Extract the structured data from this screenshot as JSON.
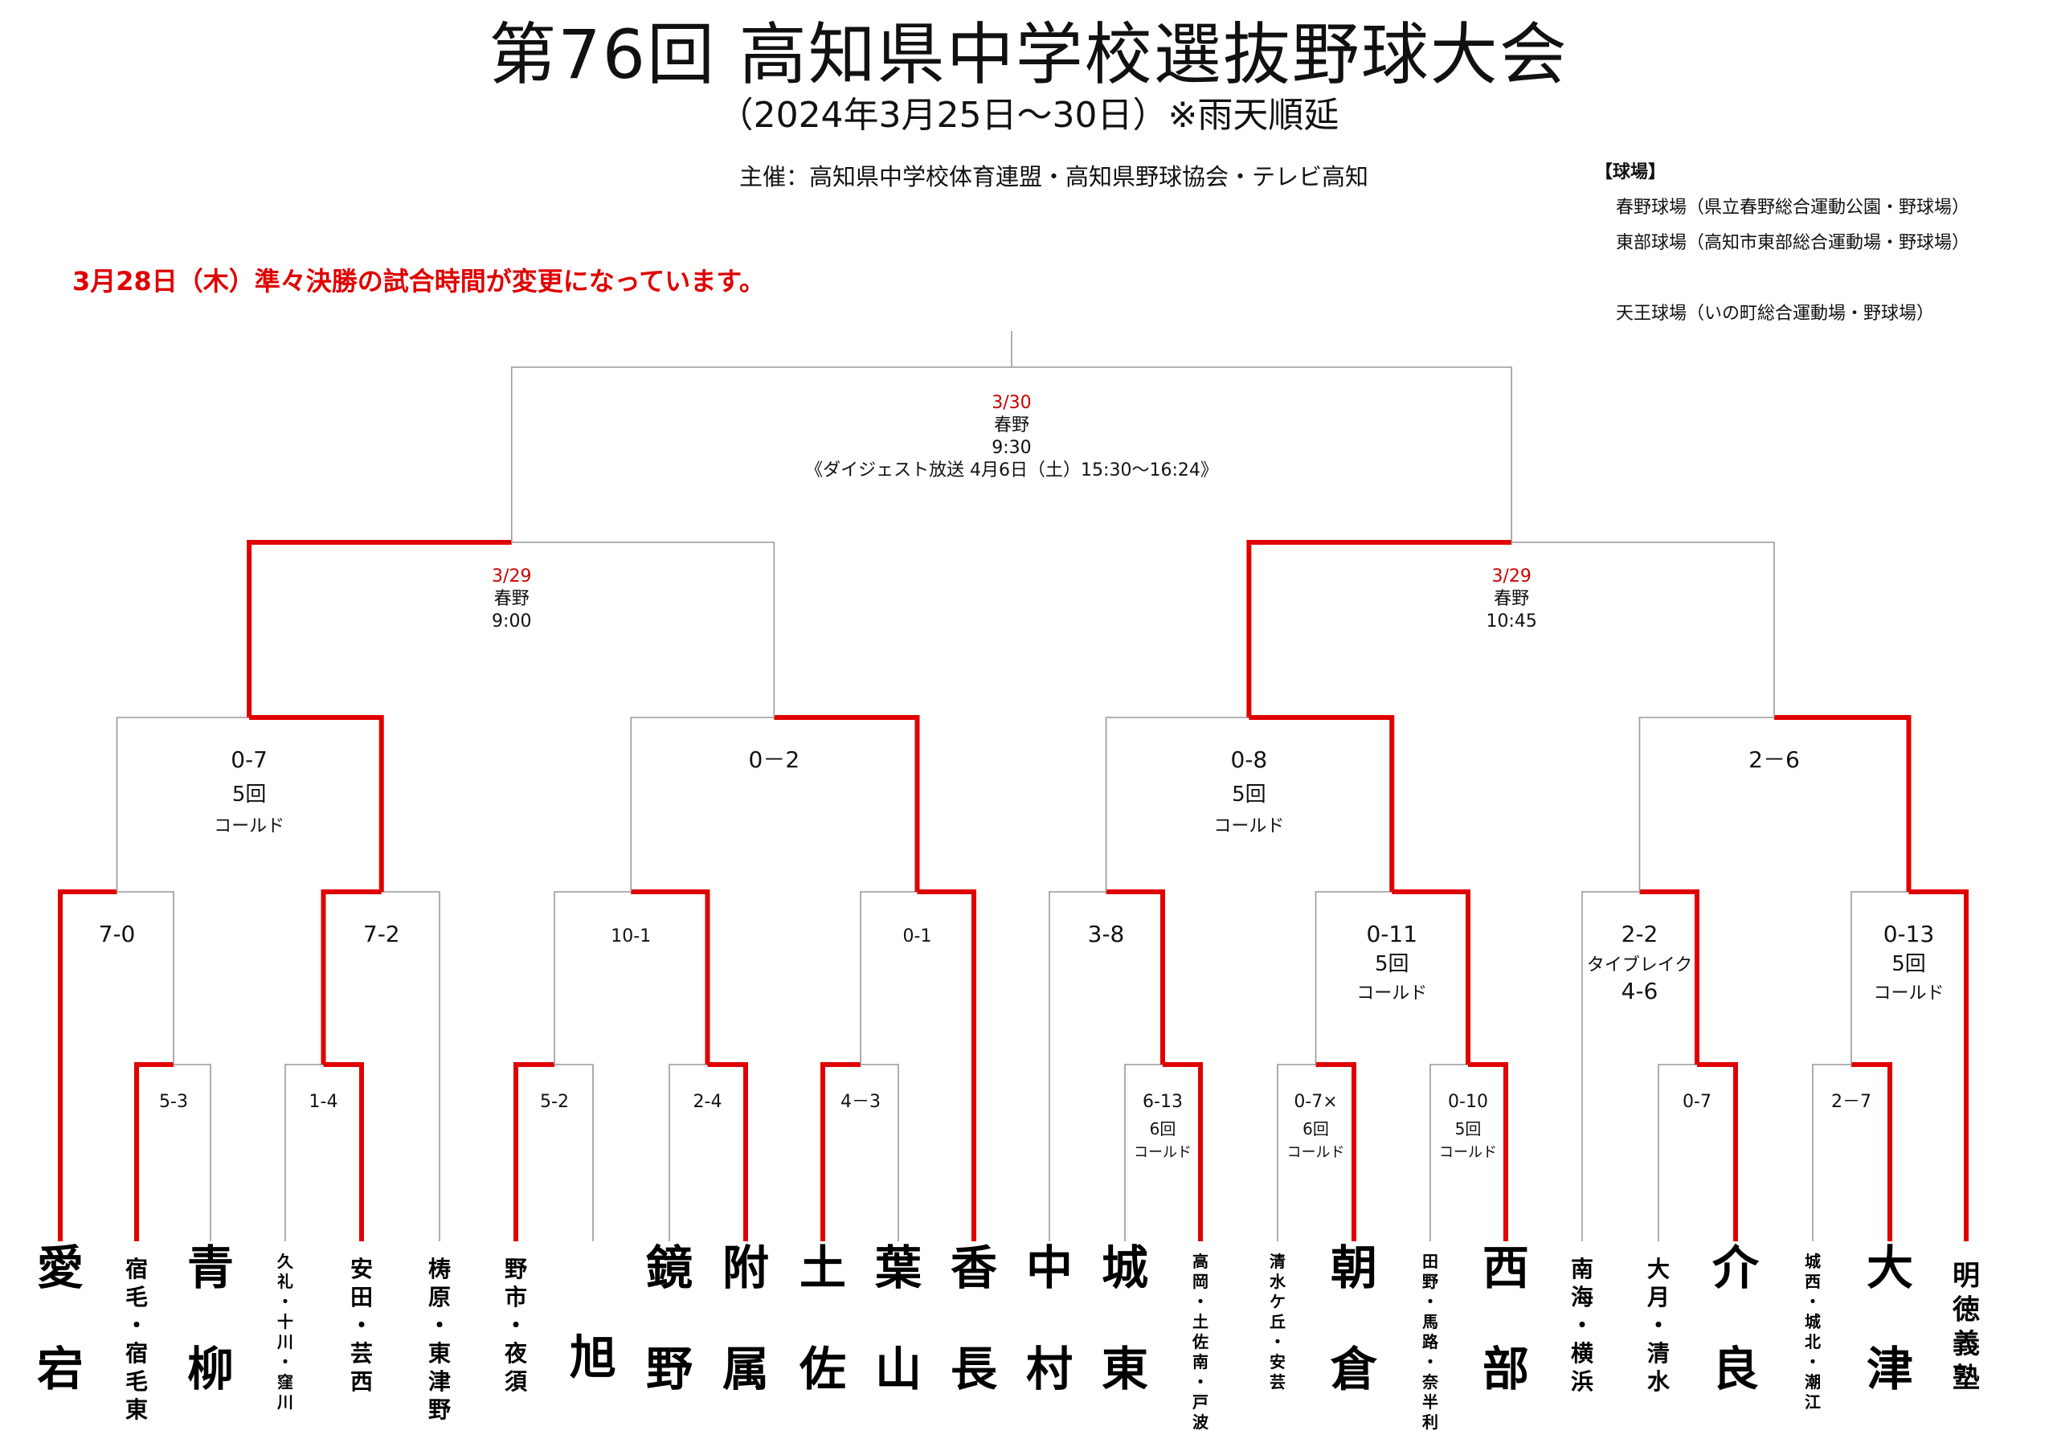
{
  "header": {
    "title": "第76回 高知県中学校選抜野球大会",
    "subtitle": "（2024年3月25日～30日）※雨天順延",
    "organizer": "主催：高知県中学校体育連盟・高知県野球協会・テレビ高知",
    "notice": "3月28日（木）準々決勝の試合時間が変更になっています。"
  },
  "venues": {
    "heading": "【球場】",
    "items": [
      "春野球場（県立春野総合運動公園・野球場）",
      "東部球場（高知市東部総合運動場・野球場）",
      "天王球場（いの町総合運動場・野球場）"
    ]
  },
  "colors": {
    "winner_line": "#e00000",
    "loser_line": "#999999",
    "date": "#cc0000"
  },
  "bracket": {
    "final": {
      "date": "3/30",
      "venue": "春野",
      "time": "9:30",
      "broadcast": "《ダイジェスト放送 4月6日（土）15:30～16:24》"
    },
    "semifinals": [
      {
        "date": "3/29",
        "venue": "春野",
        "time": "9:00"
      },
      {
        "date": "3/29",
        "venue": "春野",
        "time": "10:45"
      }
    ],
    "quarterfinals": [
      {
        "score": "0-7",
        "note1": "5回",
        "note2": "コールド"
      },
      {
        "score": "0－2",
        "note1": "",
        "note2": ""
      },
      {
        "score": "0-8",
        "note1": "5回",
        "note2": "コールド"
      },
      {
        "score": "2－6",
        "note1": "",
        "note2": ""
      }
    ],
    "round2": [
      {
        "score": "7-0",
        "note1": "",
        "note2": "",
        "note3": ""
      },
      {
        "score": "7-2",
        "note1": "",
        "note2": "",
        "note3": ""
      },
      {
        "score": "10-1",
        "note1": "",
        "note2": "",
        "note3": ""
      },
      {
        "score": "0-1",
        "note1": "",
        "note2": "",
        "note3": ""
      },
      {
        "score": "3-8",
        "note1": "",
        "note2": "",
        "note3": ""
      },
      {
        "score": "0-11",
        "note1": "5回",
        "note2": "コールド",
        "note3": ""
      },
      {
        "score": "2-2",
        "note1": "タイブレイク",
        "note2": "4-6",
        "note3": ""
      },
      {
        "score": "0-13",
        "note1": "5回",
        "note2": "コールド",
        "note3": ""
      }
    ],
    "round1": [
      {
        "score": "5-3",
        "note1": "",
        "note2": ""
      },
      {
        "score": "1-4",
        "note1": "",
        "note2": ""
      },
      {
        "score": "5-2",
        "note1": "",
        "note2": ""
      },
      {
        "score": "2-4",
        "note1": "",
        "note2": ""
      },
      {
        "score": "4－3",
        "note1": "",
        "note2": ""
      },
      {
        "score": "6-13",
        "note1": "6回",
        "note2": "コールド"
      },
      {
        "score": "0-7×",
        "note1": "6回",
        "note2": "コールド"
      },
      {
        "score": "0-10",
        "note1": "5回",
        "note2": "コールド"
      },
      {
        "score": "0-7",
        "note1": "",
        "note2": ""
      },
      {
        "score": "2－7",
        "note1": "",
        "note2": ""
      }
    ]
  },
  "teams": [
    {
      "lines": [
        "愛",
        "宕"
      ]
    },
    {
      "lines": [
        "宿毛・宿毛東"
      ]
    },
    {
      "lines": [
        "青",
        "柳"
      ]
    },
    {
      "lines": [
        "久礼・十川・窪川"
      ]
    },
    {
      "lines": [
        "安田・芸西"
      ]
    },
    {
      "lines": [
        "梼原・東津野"
      ]
    },
    {
      "lines": [
        "野市・夜須"
      ]
    },
    {
      "lines": [
        "旭"
      ]
    },
    {
      "lines": [
        "鏡",
        "野"
      ]
    },
    {
      "lines": [
        "附",
        "属"
      ]
    },
    {
      "lines": [
        "土",
        "佐"
      ]
    },
    {
      "lines": [
        "葉",
        "山"
      ]
    },
    {
      "lines": [
        "香",
        "長"
      ]
    },
    {
      "lines": [
        "中",
        "村"
      ]
    },
    {
      "lines": [
        "城",
        "東"
      ]
    },
    {
      "lines": [
        "高岡・土佐南・戸波"
      ]
    },
    {
      "lines": [
        "清水ケ丘・安芸"
      ]
    },
    {
      "lines": [
        "朝",
        "倉"
      ]
    },
    {
      "lines": [
        "田野・馬路・奈半利"
      ]
    },
    {
      "lines": [
        "西",
        "部"
      ]
    },
    {
      "lines": [
        "南海・横浜"
      ]
    },
    {
      "lines": [
        "大月・清水"
      ]
    },
    {
      "lines": [
        "介",
        "良"
      ]
    },
    {
      "lines": [
        "城西・城北・潮江"
      ]
    },
    {
      "lines": [
        "大",
        "津"
      ]
    },
    {
      "lines": [
        "明徳義塾"
      ]
    }
  ]
}
